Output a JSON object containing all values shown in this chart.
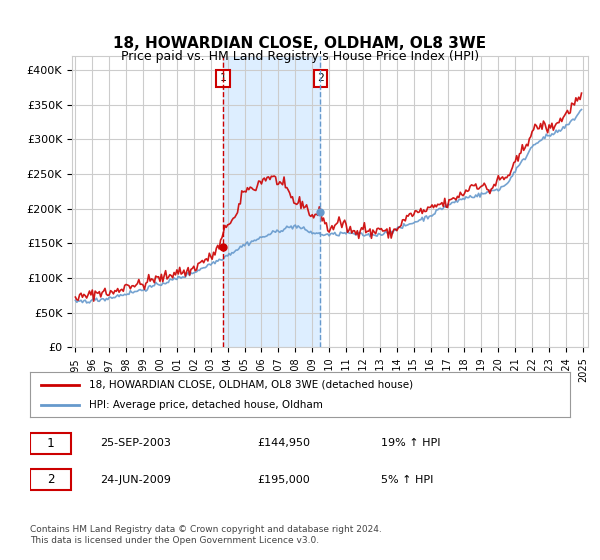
{
  "title": "18, HOWARDIAN CLOSE, OLDHAM, OL8 3WE",
  "subtitle": "Price paid vs. HM Land Registry's House Price Index (HPI)",
  "legend_line1": "18, HOWARDIAN CLOSE, OLDHAM, OL8 3WE (detached house)",
  "legend_line2": "HPI: Average price, detached house, Oldham",
  "table_row1_label": "1",
  "table_row1_date": "25-SEP-2003",
  "table_row1_price": "£144,950",
  "table_row1_hpi": "19% ↑ HPI",
  "table_row2_label": "2",
  "table_row2_date": "24-JUN-2009",
  "table_row2_price": "£195,000",
  "table_row2_hpi": "5% ↑ HPI",
  "footer": "Contains HM Land Registry data © Crown copyright and database right 2024.\nThis data is licensed under the Open Government Licence v3.0.",
  "sale1_year": 2003.73,
  "sale1_price": 144950,
  "sale2_year": 2009.48,
  "sale2_price": 195000,
  "vline1_year": 2003.73,
  "vline2_year": 2009.48,
  "red_color": "#cc0000",
  "blue_color": "#6699cc",
  "shade_color": "#ddeeff",
  "ylim_min": 0,
  "ylim_max": 420000,
  "background_color": "#ffffff",
  "grid_color": "#cccccc"
}
